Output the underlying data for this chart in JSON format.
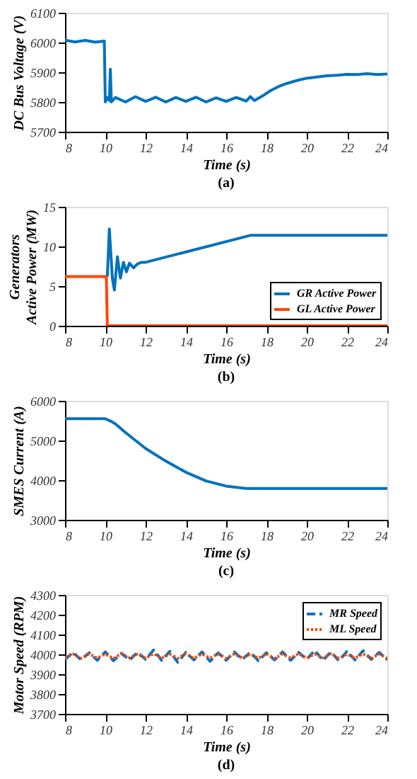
{
  "chart_data": [
    {
      "type": "line",
      "xlabel": "Time (s)",
      "ylabel": "DC Bus Voltage (V)",
      "annotations": [
        "(a)"
      ],
      "xlim": [
        8,
        24
      ],
      "xticks": [
        8,
        10,
        12,
        14,
        16,
        18,
        20,
        22,
        24
      ],
      "ylim": [
        5700,
        6100
      ],
      "yticks": [
        5700,
        5800,
        5900,
        6000,
        6100
      ],
      "grid": false,
      "legend": false,
      "series": [
        {
          "color": "#0072bd",
          "x": [
            8,
            8.5,
            9,
            9.5,
            9.95,
            10.0,
            10.1,
            10.2,
            10.25,
            10.3,
            10.5,
            11,
            11.5,
            12,
            12.5,
            13,
            13.5,
            14,
            14.5,
            15,
            15.5,
            16,
            16.5,
            17,
            17.2,
            17.4,
            17.8,
            18.2,
            18.6,
            19,
            19.5,
            20,
            20.5,
            21,
            21.5,
            22,
            22.5,
            23,
            23.5,
            24
          ],
          "values": [
            6008,
            6002,
            6007,
            6001,
            6005,
            5800,
            5815,
            5805,
            5910,
            5800,
            5815,
            5800,
            5818,
            5802,
            5816,
            5800,
            5815,
            5802,
            5816,
            5800,
            5814,
            5802,
            5815,
            5803,
            5818,
            5805,
            5820,
            5838,
            5852,
            5862,
            5872,
            5880,
            5884,
            5888,
            5890,
            5893,
            5892,
            5895,
            5892,
            5894
          ]
        }
      ]
    },
    {
      "type": "line",
      "xlabel": "Time (s)",
      "ylabel": "Generators\nActive Power (MW)",
      "annotations": [
        "(b)"
      ],
      "xlim": [
        8,
        24
      ],
      "xticks": [
        8,
        10,
        12,
        14,
        16,
        18,
        20,
        22,
        24
      ],
      "ylim": [
        0,
        15
      ],
      "yticks": [
        0,
        5,
        10,
        15
      ],
      "grid": false,
      "legend": "bottom right",
      "series": [
        {
          "name": "GR Active Power",
          "color": "#0072bd",
          "x": [
            10.1,
            10.2,
            10.35,
            10.45,
            10.6,
            10.75,
            10.9,
            11.05,
            11.2,
            11.4,
            11.6,
            11.8,
            12,
            17.2,
            24
          ],
          "values": [
            6.2,
            12.2,
            6,
            4.5,
            8.7,
            6,
            8,
            6.8,
            7.9,
            7.3,
            7.8,
            8,
            8,
            11.4,
            11.4
          ]
        },
        {
          "name": "GL Active Power",
          "color": "#ff4500",
          "x": [
            8,
            10.05,
            10.1,
            24
          ],
          "values": [
            6.2,
            6.2,
            0,
            0
          ]
        }
      ]
    },
    {
      "type": "line",
      "xlabel": "Time (s)",
      "ylabel": "SMES Current (A)",
      "annotations": [
        "(c)"
      ],
      "xlim": [
        8,
        24
      ],
      "xticks": [
        8,
        10,
        12,
        14,
        16,
        18,
        20,
        22,
        24
      ],
      "ylim": [
        3000,
        6000
      ],
      "yticks": [
        3000,
        4000,
        5000,
        6000
      ],
      "grid": false,
      "legend": false,
      "series": [
        {
          "color": "#0072bd",
          "x": [
            8,
            10,
            10.3,
            10.5,
            11,
            12,
            13,
            14,
            15,
            16,
            17,
            24
          ],
          "values": [
            5550,
            5550,
            5480,
            5420,
            5200,
            4800,
            4480,
            4200,
            3980,
            3850,
            3790,
            3790
          ]
        }
      ]
    },
    {
      "type": "line",
      "xlabel": "Time (s)",
      "ylabel": "Motor Speed (RPM)",
      "annotations": [
        "(d)"
      ],
      "xlim": [
        8,
        24
      ],
      "xticks": [
        8,
        10,
        12,
        14,
        16,
        18,
        20,
        22,
        24
      ],
      "ylim": [
        3700,
        4300
      ],
      "yticks": [
        3700,
        3800,
        3900,
        4000,
        4100,
        4200,
        4300
      ],
      "grid": false,
      "legend": "top right",
      "series": [
        {
          "name": "MR Speed",
          "color": "#0072bd",
          "line_style": "dashed",
          "x": [
            8,
            8.4,
            8.8,
            9.2,
            9.6,
            10,
            10.4,
            10.8,
            11.2,
            11.6,
            12,
            12.4,
            12.8,
            13.2,
            13.6,
            14,
            14.4,
            14.8,
            15.2,
            15.6,
            16,
            16.4,
            16.8,
            17.2,
            17.6,
            18,
            18.4,
            18.8,
            19.2,
            19.6,
            20,
            20.4,
            20.8,
            21.2,
            21.6,
            22,
            22.4,
            22.8,
            23.2,
            23.6,
            24
          ],
          "values": [
            3975,
            4010,
            3972,
            4008,
            3970,
            4012,
            3968,
            4005,
            3972,
            4010,
            3975,
            4022,
            3970,
            4015,
            3960,
            4010,
            3972,
            4012,
            3965,
            4008,
            3970,
            4012,
            3975,
            4010,
            3968,
            4008,
            3972,
            4012,
            3970,
            4010,
            3975,
            4020,
            3970,
            4012,
            3968,
            4015,
            3972,
            4018,
            3975,
            4010,
            3972
          ]
        },
        {
          "name": "ML Speed",
          "color": "#ff4500",
          "line_style": "dotted",
          "x": [
            8,
            8.4,
            8.8,
            9.2,
            9.6,
            10,
            10.4,
            10.8,
            11.2,
            11.6,
            12,
            12.4,
            12.8,
            13.2,
            13.6,
            14,
            14.4,
            14.8,
            15.2,
            15.6,
            16,
            16.4,
            16.8,
            17.2,
            17.6,
            18,
            18.4,
            18.8,
            19.2,
            19.6,
            20,
            20.4,
            20.8,
            21.2,
            21.6,
            22,
            22.4,
            22.8,
            23.2,
            23.6,
            24
          ],
          "values": [
            3982,
            4002,
            3980,
            4003,
            3981,
            4002,
            3979,
            4004,
            3982,
            4001,
            3980,
            4003,
            3981,
            4002,
            3980,
            4004,
            3979,
            4002,
            3981,
            4003,
            3980,
            4002,
            3982,
            4001,
            3980,
            4003,
            3979,
            4002,
            3981,
            4004,
            3980,
            4002,
            3982,
            4003,
            3980,
            4001,
            3981,
            4003,
            3980,
            4002,
            3981
          ]
        }
      ]
    }
  ]
}
